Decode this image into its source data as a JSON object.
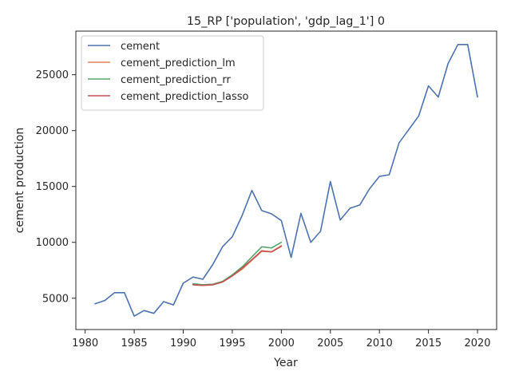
{
  "chart_data": {
    "type": "line",
    "title": "15_RP ['population', 'gdp_lag_1'] 0",
    "xlabel": "Year",
    "ylabel": "cement production",
    "xlim": [
      1979.05,
      2021.95
    ],
    "ylim": [
      2200,
      28900
    ],
    "xticks": [
      1980,
      1985,
      1990,
      1995,
      2000,
      2005,
      2010,
      2015,
      2020
    ],
    "yticks": [
      5000,
      10000,
      15000,
      20000,
      25000
    ],
    "grid": false,
    "legend": "top-left",
    "series": [
      {
        "name": "cement",
        "color": "#4c72b0",
        "x": [
          1981,
          1982,
          1983,
          1984,
          1985,
          1986,
          1987,
          1988,
          1989,
          1990,
          1991,
          1992,
          1993,
          1994,
          1995,
          1996,
          1997,
          1998,
          1999,
          2000,
          2001,
          2002,
          2003,
          2004,
          2005,
          2006,
          2007,
          2008,
          2009,
          2010,
          2011,
          2012,
          2013,
          2014,
          2015,
          2016,
          2017,
          2018,
          2019,
          2020
        ],
        "y": [
          4500,
          4800,
          5500,
          5500,
          3400,
          3900,
          3650,
          4700,
          4400,
          6350,
          6900,
          6700,
          8000,
          9600,
          10500,
          12400,
          14650,
          12850,
          12550,
          11950,
          8650,
          12600,
          10000,
          11000,
          15450,
          12000,
          13050,
          13350,
          14800,
          15900,
          16050,
          18900,
          20100,
          21300,
          24000,
          23000,
          26000,
          27700,
          27700,
          23000
        ]
      },
      {
        "name": "cement_prediction_lm",
        "color": "#dd8452",
        "x": [
          1991,
          1992,
          1993,
          1994,
          1995,
          1996,
          1997,
          1998,
          1999,
          2000
        ],
        "y": [
          6250,
          6200,
          6250,
          6500,
          7000,
          7600,
          8400,
          9200,
          9150,
          9700
        ]
      },
      {
        "name": "cement_prediction_rr",
        "color": "#55a868",
        "x": [
          1991,
          1992,
          1993,
          1994,
          1995,
          1996,
          1997,
          1998,
          1999,
          2000
        ],
        "y": [
          6300,
          6200,
          6250,
          6500,
          7100,
          7800,
          8700,
          9600,
          9500,
          10000
        ]
      },
      {
        "name": "cement_prediction_lasso",
        "color": "#c44e52",
        "x": [
          1991,
          1992,
          1993,
          1994,
          1995,
          1996,
          1997,
          1998,
          1999,
          2000
        ],
        "y": [
          6200,
          6150,
          6200,
          6450,
          7000,
          7700,
          8450,
          9250,
          9150,
          9650
        ]
      }
    ]
  }
}
